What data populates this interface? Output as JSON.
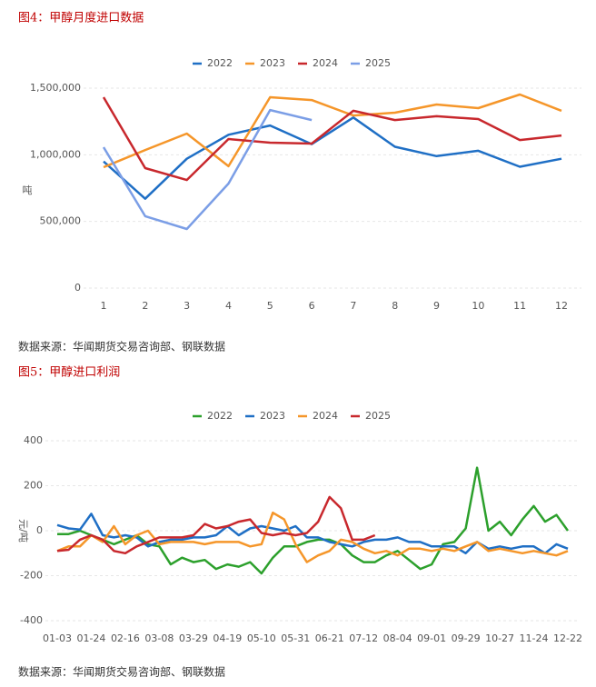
{
  "chart_data": [
    {
      "type": "line",
      "title": "图4：甲醇月度进口数据",
      "source": "数据来源：华闻期货交易咨询部、钢联数据",
      "ylabel": "吨",
      "categories": [
        "1",
        "2",
        "3",
        "4",
        "5",
        "6",
        "7",
        "8",
        "9",
        "10",
        "11",
        "12"
      ],
      "series": [
        {
          "name": "2022",
          "color": "#1f6fc5",
          "values": [
            950000,
            670000,
            970000,
            1150000,
            1220000,
            1080000,
            1280000,
            1060000,
            990000,
            1030000,
            910000,
            970000
          ]
        },
        {
          "name": "2023",
          "color": "#f5962a",
          "values": [
            907000,
            1036000,
            1159000,
            914000,
            1432000,
            1411000,
            1295000,
            1316000,
            1377000,
            1350000,
            1452000,
            1330000
          ]
        },
        {
          "name": "2024",
          "color": "#c8282d",
          "values": [
            1432000,
            900000,
            811000,
            1118000,
            1091000,
            1084000,
            1330000,
            1261000,
            1289000,
            1268000,
            1111000,
            1145000
          ]
        },
        {
          "name": "2025",
          "color": "#7b9ee6",
          "values": [
            1057000,
            539000,
            443000,
            784000,
            1336000,
            1261000,
            null,
            null,
            null,
            null,
            null,
            null
          ]
        }
      ],
      "ylim": [
        0,
        1500000
      ],
      "yticks": [
        0,
        {
          "value": 500000,
          "label": "500,000"
        },
        {
          "value": 1000000,
          "label": "1,000,000"
        },
        {
          "value": 1500000,
          "label": "1,500,000"
        }
      ],
      "grid": true,
      "legend": "top"
    },
    {
      "type": "line",
      "title": "图5：甲醇进口利润",
      "source": "数据来源：华闻期货交易咨询部、钢联数据",
      "ylabel": "元/吨",
      "categories": [
        "01-03",
        null,
        null,
        "01-24",
        null,
        null,
        "02-16",
        null,
        null,
        "03-08",
        null,
        null,
        "03-29",
        null,
        null,
        "04-19",
        null,
        null,
        "05-10",
        null,
        null,
        "05-31",
        null,
        null,
        "06-21",
        null,
        null,
        "07-12",
        null,
        null,
        "08-04",
        null,
        null,
        "09-01",
        null,
        null,
        "09-29",
        null,
        null,
        "10-27",
        null,
        null,
        "11-24",
        null,
        null,
        "12-22"
      ],
      "series": [
        {
          "name": "2022",
          "color": "#2ca02c",
          "values": [
            -15,
            -15,
            0,
            -20,
            -40,
            -60,
            -40,
            -20,
            -60,
            -70,
            -150,
            -120,
            -140,
            -130,
            -170,
            -150,
            -160,
            -140,
            -190,
            -120,
            -70,
            -70,
            -50,
            -40,
            -40,
            -60,
            -110,
            -140,
            -140,
            -110,
            -90,
            -130,
            -170,
            -150,
            -60,
            -50,
            10,
            280,
            0,
            40,
            -20,
            50,
            110,
            40,
            70,
            0
          ]
        },
        {
          "name": "2023",
          "color": "#1f6fc5",
          "values": [
            25,
            10,
            5,
            75,
            -20,
            -30,
            -20,
            -30,
            -70,
            -50,
            -40,
            -40,
            -30,
            -30,
            -20,
            20,
            -20,
            10,
            20,
            10,
            0,
            20,
            -30,
            -30,
            -50,
            -60,
            -70,
            -50,
            -40,
            -40,
            -30,
            -50,
            -50,
            -70,
            -70,
            -70,
            -100,
            -50,
            -80,
            -70,
            -80,
            -70,
            -70,
            -100,
            -60,
            -80
          ]
        },
        {
          "name": "2024",
          "color": "#f5962a",
          "values": [
            -90,
            -70,
            -70,
            -20,
            -50,
            20,
            -60,
            -20,
            0,
            -60,
            -50,
            -50,
            -50,
            -60,
            -50,
            -50,
            -50,
            -70,
            -60,
            80,
            50,
            -60,
            -140,
            -110,
            -90,
            -40,
            -50,
            -80,
            -100,
            -90,
            -110,
            -80,
            -80,
            -90,
            -80,
            -90,
            -70,
            -50,
            -90,
            -80,
            -90,
            -100,
            -90,
            -100,
            -110,
            -90
          ]
        },
        {
          "name": "2025",
          "color": "#c8282d",
          "values": [
            -90,
            -85,
            -40,
            -20,
            -40,
            -90,
            -100,
            -70,
            -50,
            -30,
            -30,
            -30,
            -20,
            30,
            10,
            20,
            40,
            50,
            -10,
            -20,
            -10,
            -20,
            -10,
            40,
            150,
            100,
            -40,
            -40,
            -20,
            null,
            null,
            null,
            null,
            null,
            null,
            null,
            null,
            null,
            null,
            null,
            null,
            null,
            null,
            null,
            null,
            null
          ]
        }
      ],
      "ylim": [
        -400,
        400
      ],
      "yticks": [
        -400,
        -200,
        0,
        200,
        400
      ],
      "grid": true,
      "legend": "top"
    }
  ]
}
